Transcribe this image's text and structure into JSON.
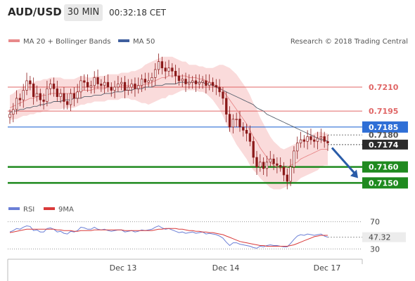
{
  "header": {
    "pair": "AUD/USD",
    "timeframe": "30 MIN",
    "time": "00:32:18 CET"
  },
  "legend": {
    "items": [
      {
        "label": "MA 20 + Bollinger Bands",
        "color": "#e8898a"
      },
      {
        "label": "MA 50",
        "color": "#3f5f9e"
      }
    ],
    "credit": "Research © 2018 Trading Central"
  },
  "rsi_legend": {
    "items": [
      {
        "label": "RSI",
        "color": "#6b7fd6"
      },
      {
        "label": "9MA",
        "color": "#d93a3a"
      }
    ]
  },
  "colors": {
    "candle": "#8b1a1a",
    "band": "#fadbdb",
    "ma20": "#e8898a",
    "ma50": "#57616e",
    "resistance": "#e06666",
    "pivot": "#2f6fd6",
    "support": "#1f8a1f",
    "current": "#2b2b2b",
    "arrow": "#2a5ca8"
  },
  "chart_data": [
    {
      "type": "candlestick",
      "title": "AUD/USD",
      "timeframe": "30 MIN",
      "x_tick_labels": [
        "Dec 13",
        "Dec 14",
        "Dec 17"
      ],
      "ylim": [
        0.7144,
        0.7232
      ],
      "closes": [
        0.7193,
        0.7196,
        0.7203,
        0.7202,
        0.7208,
        0.7214,
        0.7212,
        0.7204,
        0.7206,
        0.7202,
        0.7201,
        0.7209,
        0.7212,
        0.7209,
        0.7204,
        0.7206,
        0.7201,
        0.7199,
        0.7206,
        0.7203,
        0.7207,
        0.7214,
        0.7213,
        0.721,
        0.7211,
        0.7216,
        0.7212,
        0.7211,
        0.7213,
        0.721,
        0.7208,
        0.721,
        0.7212,
        0.7213,
        0.7208,
        0.721,
        0.7212,
        0.7209,
        0.7211,
        0.7215,
        0.7213,
        0.7214,
        0.7216,
        0.7221,
        0.7226,
        0.7222,
        0.722,
        0.7222,
        0.722,
        0.7217,
        0.7214,
        0.7215,
        0.7212,
        0.7213,
        0.7214,
        0.7212,
        0.7213,
        0.7214,
        0.7211,
        0.7213,
        0.7211,
        0.721,
        0.7207,
        0.7203,
        0.7193,
        0.7185,
        0.719,
        0.719,
        0.7185,
        0.7183,
        0.7181,
        0.7176,
        0.7166,
        0.716,
        0.7163,
        0.7159,
        0.7163,
        0.7165,
        0.7162,
        0.7161,
        0.716,
        0.7155,
        0.7151,
        0.716,
        0.717,
        0.7175,
        0.7177,
        0.7176,
        0.7179,
        0.7177,
        0.7176,
        0.7178,
        0.7179,
        0.7176,
        0.7175
      ],
      "ma20": [
        0.7197,
        0.7198,
        0.7199,
        0.72,
        0.7201,
        0.7202,
        0.7203,
        0.7203,
        0.7204,
        0.7204,
        0.7205,
        0.7205,
        0.7206,
        0.7206,
        0.7206,
        0.7206,
        0.7206,
        0.7206,
        0.7206,
        0.7206,
        0.7207,
        0.7208,
        0.7208,
        0.7208,
        0.7208,
        0.7209,
        0.7209,
        0.7209,
        0.7209,
        0.721,
        0.721,
        0.721,
        0.721,
        0.7211,
        0.7211,
        0.7211,
        0.7211,
        0.7211,
        0.7211,
        0.7211,
        0.7212,
        0.7212,
        0.7213,
        0.7214,
        0.7215,
        0.7216,
        0.7216,
        0.7217,
        0.7217,
        0.7217,
        0.7217,
        0.7217,
        0.7217,
        0.7216,
        0.7216,
        0.7216,
        0.7215,
        0.7215,
        0.7214,
        0.7213,
        0.7212,
        0.7211,
        0.721,
        0.7208,
        0.7205,
        0.7202,
        0.7199,
        0.7196,
        0.7193,
        0.719,
        0.7187,
        0.7183,
        0.7179,
        0.7176,
        0.7172,
        0.7169,
        0.7166,
        0.7163,
        0.7161,
        0.716,
        0.7159,
        0.7159,
        0.716,
        0.7161,
        0.7162,
        0.7163,
        0.7165,
        0.7166,
        0.7167,
        0.7168,
        0.7169,
        0.717,
        0.7171,
        0.7171,
        0.7171
      ],
      "ma50": [
        0.7194,
        0.7195,
        0.7195,
        0.7196,
        0.7196,
        0.7197,
        0.7197,
        0.7198,
        0.7198,
        0.7199,
        0.7199,
        0.72,
        0.72,
        0.7201,
        0.7201,
        0.7201,
        0.7202,
        0.7202,
        0.7202,
        0.7203,
        0.7203,
        0.7203,
        0.7204,
        0.7204,
        0.7204,
        0.7205,
        0.7205,
        0.7205,
        0.7206,
        0.7206,
        0.7206,
        0.7207,
        0.7207,
        0.7207,
        0.7208,
        0.7208,
        0.7208,
        0.7209,
        0.7209,
        0.7209,
        0.721,
        0.721,
        0.721,
        0.7211,
        0.7211,
        0.7211,
        0.7212,
        0.7212,
        0.7212,
        0.7212,
        0.7213,
        0.7213,
        0.7213,
        0.7213,
        0.7213,
        0.7213,
        0.7213,
        0.7213,
        0.7212,
        0.7212,
        0.7211,
        0.721,
        0.7209,
        0.7208,
        0.7207,
        0.7206,
        0.7205,
        0.7204,
        0.7203,
        0.7202,
        0.7201,
        0.72,
        0.7199,
        0.7197,
        0.7196,
        0.7195,
        0.7193,
        0.7192,
        0.7191,
        0.719,
        0.7189,
        0.7188,
        0.7187,
        0.7186,
        0.7185,
        0.7184,
        0.7183,
        0.7182,
        0.7181,
        0.718,
        0.7179,
        0.7178,
        0.7177,
        0.7177,
        0.7176
      ],
      "band_width": [
        0.0008,
        0.0008,
        0.0009,
        0.0009,
        0.0009,
        0.001,
        0.001,
        0.001,
        0.001,
        0.001,
        0.001,
        0.001,
        0.001,
        0.001,
        0.001,
        0.001,
        0.0009,
        0.0009,
        0.0009,
        0.0009,
        0.0009,
        0.0009,
        0.0009,
        0.0008,
        0.0008,
        0.0008,
        0.0008,
        0.0008,
        0.0008,
        0.0008,
        0.0008,
        0.0008,
        0.0008,
        0.0008,
        0.0008,
        0.0008,
        0.0009,
        0.0009,
        0.001,
        0.0011,
        0.0012,
        0.0013,
        0.0013,
        0.0013,
        0.0013,
        0.0013,
        0.0013,
        0.0012,
        0.0012,
        0.0011,
        0.001,
        0.0009,
        0.0009,
        0.0008,
        0.0008,
        0.0008,
        0.0008,
        0.0008,
        0.0008,
        0.0009,
        0.001,
        0.0012,
        0.0014,
        0.0016,
        0.0018,
        0.002,
        0.0021,
        0.0022,
        0.0022,
        0.0022,
        0.0022,
        0.0022,
        0.0021,
        0.002,
        0.0019,
        0.0018,
        0.0017,
        0.0016,
        0.0015,
        0.0014,
        0.0013,
        0.0012,
        0.0012,
        0.0012,
        0.0012,
        0.0012,
        0.0012,
        0.0012,
        0.0012,
        0.0012,
        0.0012,
        0.0012,
        0.0011,
        0.001,
        0.001
      ],
      "levels": [
        {
          "value": 0.721,
          "label": "0.7210",
          "kind": "resistance"
        },
        {
          "value": 0.7195,
          "label": "0.7195",
          "kind": "resistance"
        },
        {
          "value": 0.7185,
          "label": "0.7185",
          "kind": "pivot"
        },
        {
          "value": 0.718,
          "label": "0.7180",
          "kind": "mark"
        },
        {
          "value": 0.7174,
          "label": "0.7174",
          "kind": "current"
        },
        {
          "value": 0.716,
          "label": "0.7160",
          "kind": "support"
        },
        {
          "value": 0.715,
          "label": "0.7150",
          "kind": "support"
        }
      ],
      "forecast_arrow": {
        "from": 0.7172,
        "to": 0.7153,
        "direction": "down"
      }
    },
    {
      "type": "line",
      "title": "RSI",
      "ylim": [
        20,
        80
      ],
      "y_tick_labels": [
        "70",
        "30"
      ],
      "reference_lines": [
        70,
        30
      ],
      "current_value": "47.32",
      "series": [
        {
          "name": "RSI",
          "values": [
            55,
            57,
            60,
            59,
            62,
            64,
            63,
            57,
            58,
            55,
            55,
            60,
            61,
            59,
            55,
            56,
            53,
            52,
            56,
            55,
            57,
            62,
            61,
            59,
            59,
            62,
            59,
            58,
            59,
            57,
            56,
            57,
            58,
            58,
            55,
            56,
            57,
            55,
            56,
            58,
            57,
            58,
            59,
            62,
            64,
            61,
            59,
            60,
            58,
            56,
            54,
            55,
            53,
            54,
            55,
            53,
            54,
            55,
            52,
            53,
            52,
            51,
            49,
            46,
            40,
            35,
            39,
            39,
            37,
            36,
            35,
            34,
            32,
            31,
            34,
            33,
            35,
            36,
            35,
            35,
            34,
            33,
            33,
            38,
            44,
            49,
            51,
            50,
            52,
            51,
            50,
            51,
            52,
            49,
            47.32
          ]
        },
        {
          "name": "9MA",
          "values": [
            54,
            55,
            56,
            57,
            58,
            59,
            59,
            59,
            59,
            59,
            59,
            59,
            59,
            59,
            58,
            58,
            57,
            57,
            57,
            56,
            56,
            57,
            57,
            57,
            57,
            58,
            58,
            58,
            58,
            58,
            58,
            58,
            58,
            58,
            57,
            57,
            57,
            57,
            57,
            57,
            57,
            57,
            57,
            58,
            59,
            59,
            60,
            60,
            60,
            60,
            59,
            59,
            58,
            57,
            57,
            56,
            56,
            55,
            55,
            54,
            54,
            53,
            52,
            51,
            49,
            47,
            45,
            43,
            41,
            40,
            39,
            38,
            37,
            36,
            35,
            35,
            34,
            34,
            34,
            34,
            34,
            34,
            34,
            35,
            36,
            38,
            40,
            42,
            44,
            46,
            48,
            49,
            50,
            50,
            50
          ]
        }
      ]
    }
  ]
}
